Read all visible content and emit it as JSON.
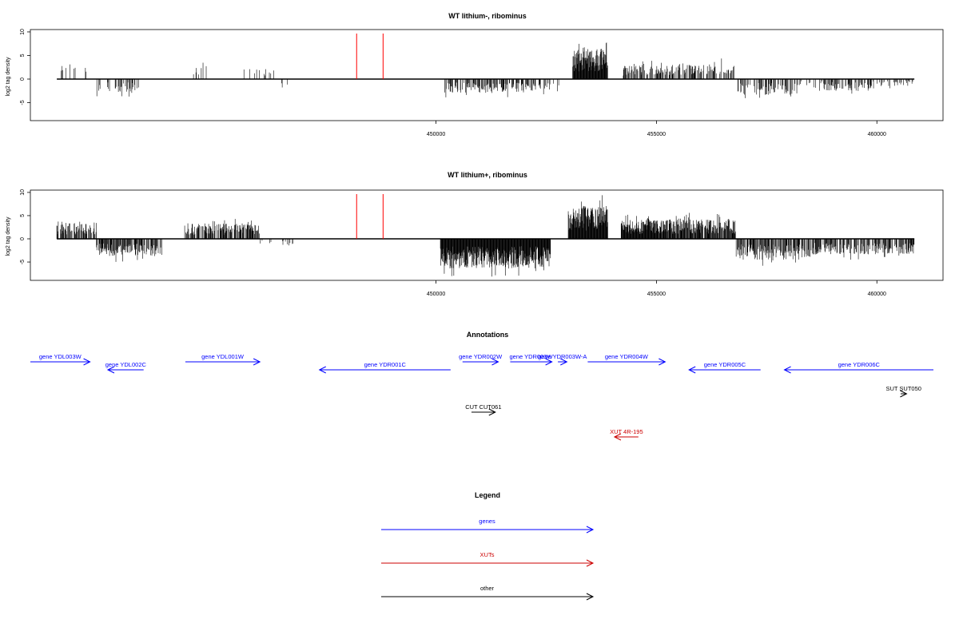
{
  "chart_data": [
    {
      "type": "bar",
      "title": "WT lithium-, ribominus",
      "ylabel": "log2 tag density",
      "xlabel": "",
      "xlim": [
        440800,
        461500
      ],
      "ylim": [
        -9,
        10.5
      ],
      "xticks": [
        450000,
        455000,
        460000
      ],
      "yticks": [
        -5,
        0,
        5,
        10
      ],
      "data_extent": [
        441400,
        460850
      ],
      "markers": [
        448200,
        448800
      ],
      "segments": [
        {
          "start": 441400,
          "end": 441800,
          "sign": 1,
          "max": 4.2,
          "density": 0.1
        },
        {
          "start": 441800,
          "end": 442300,
          "sign": 1,
          "max": 3.6,
          "density": 0.05
        },
        {
          "start": 442300,
          "end": 443300,
          "sign": -1,
          "max": 3.8,
          "density": 0.3
        },
        {
          "start": 444500,
          "end": 444900,
          "sign": 1,
          "max": 3.8,
          "density": 0.1
        },
        {
          "start": 445500,
          "end": 446400,
          "sign": 1,
          "max": 3.2,
          "density": 0.15
        },
        {
          "start": 446400,
          "end": 446800,
          "sign": -1,
          "max": 3.0,
          "density": 0.05
        },
        {
          "start": 450200,
          "end": 452000,
          "sign": -1,
          "max": 4.0,
          "density": 0.45
        },
        {
          "start": 452000,
          "end": 452800,
          "sign": -1,
          "max": 3.5,
          "density": 0.25
        },
        {
          "start": 453100,
          "end": 453900,
          "sign": 1,
          "max": 8.5,
          "density": 1.0
        },
        {
          "start": 454200,
          "end": 455500,
          "sign": 1,
          "max": 4.0,
          "density": 0.5
        },
        {
          "start": 455500,
          "end": 456800,
          "sign": 1,
          "max": 4.5,
          "density": 0.4
        },
        {
          "start": 456800,
          "end": 458200,
          "sign": -1,
          "max": 4.5,
          "density": 0.35
        },
        {
          "start": 458200,
          "end": 458800,
          "sign": -1,
          "max": 2.5,
          "density": 0.15
        },
        {
          "start": 458800,
          "end": 459900,
          "sign": -1,
          "max": 3.5,
          "density": 0.45
        },
        {
          "start": 459900,
          "end": 460850,
          "sign": -1,
          "max": 2.0,
          "density": 0.2
        }
      ]
    },
    {
      "type": "bar",
      "title": "WT lithium+, ribominus",
      "ylabel": "log2 tag density",
      "xlabel": "",
      "xlim": [
        440800,
        461500
      ],
      "ylim": [
        -9,
        10.5
      ],
      "xticks": [
        450000,
        455000,
        460000
      ],
      "yticks": [
        -5,
        0,
        5,
        10
      ],
      "data_extent": [
        441400,
        460850
      ],
      "markers": [
        448200,
        448800
      ],
      "segments": [
        {
          "start": 441400,
          "end": 442300,
          "sign": 1,
          "max": 5.0,
          "density": 0.45
        },
        {
          "start": 442300,
          "end": 443800,
          "sign": -1,
          "max": 5.0,
          "density": 0.55
        },
        {
          "start": 444300,
          "end": 446000,
          "sign": 1,
          "max": 4.5,
          "density": 0.6
        },
        {
          "start": 446000,
          "end": 446800,
          "sign": -1,
          "max": 2.0,
          "density": 0.1
        },
        {
          "start": 450100,
          "end": 452600,
          "sign": -1,
          "max": 8.5,
          "density": 1.0
        },
        {
          "start": 453000,
          "end": 453900,
          "sign": 1,
          "max": 9.5,
          "density": 1.0
        },
        {
          "start": 454200,
          "end": 455000,
          "sign": 1,
          "max": 5.5,
          "density": 1.0
        },
        {
          "start": 455000,
          "end": 456800,
          "sign": 1,
          "max": 5.8,
          "density": 0.8
        },
        {
          "start": 456800,
          "end": 458500,
          "sign": -1,
          "max": 6.0,
          "density": 0.6
        },
        {
          "start": 458500,
          "end": 460850,
          "sign": -1,
          "max": 4.5,
          "density": 0.55
        }
      ]
    }
  ],
  "annotations": {
    "title": "Annotations",
    "items": [
      {
        "label": "gene YDL003W",
        "start": 440950,
        "end": 441950,
        "row": 0,
        "dir": 1,
        "color": "#0000ff"
      },
      {
        "label": "gene YDL002C",
        "start": 442250,
        "end": 442850,
        "row": 1,
        "dir": -1,
        "color": "#0000ff"
      },
      {
        "label": "gene YDL001W",
        "start": 443550,
        "end": 444800,
        "row": 0,
        "dir": 1,
        "color": "#0000ff"
      },
      {
        "label": "gene YDR001C",
        "start": 445800,
        "end": 448000,
        "row": 1,
        "dir": -1,
        "color": "#0000ff"
      },
      {
        "label": "gene YDR002W",
        "start": 448200,
        "end": 448800,
        "row": 0,
        "dir": 1,
        "color": "#0000ff"
      },
      {
        "label": "gene YDR003W",
        "start": 449000,
        "end": 449700,
        "row": 0,
        "dir": 1,
        "color": "#0000ff"
      },
      {
        "label": "gene YDR003W-A",
        "start": 449800,
        "end": 449950,
        "row": 0,
        "dir": 1,
        "color": "#0000ff"
      },
      {
        "label": "gene YDR004W",
        "start": 450300,
        "end": 451600,
        "row": 0,
        "dir": 1,
        "color": "#0000ff"
      },
      {
        "label": "gene YDR005C",
        "start": 452000,
        "end": 453200,
        "row": 1,
        "dir": -1,
        "color": "#0000ff"
      },
      {
        "label": "gene YDR006C",
        "start": 453600,
        "end": 456100,
        "row": 1,
        "dir": -1,
        "color": "#0000ff"
      },
      {
        "label": "CUT CUT061",
        "start": 448350,
        "end": 448750,
        "row": 3,
        "dir": 1,
        "color": "#000000"
      },
      {
        "label": "XUT 4R-195",
        "start": 450750,
        "end": 451150,
        "row": 4,
        "dir": -1,
        "color": "#cc0000"
      },
      {
        "label": "SUT SUT050",
        "start": 455550,
        "end": 455650,
        "row": 2,
        "dir": 1,
        "color": "#000000"
      }
    ]
  },
  "legend": {
    "title": "Legend",
    "items": [
      {
        "label": "genes",
        "color": "#0000ff"
      },
      {
        "label": "XUTs",
        "color": "#cc0000"
      },
      {
        "label": "other",
        "color": "#000000"
      }
    ]
  }
}
